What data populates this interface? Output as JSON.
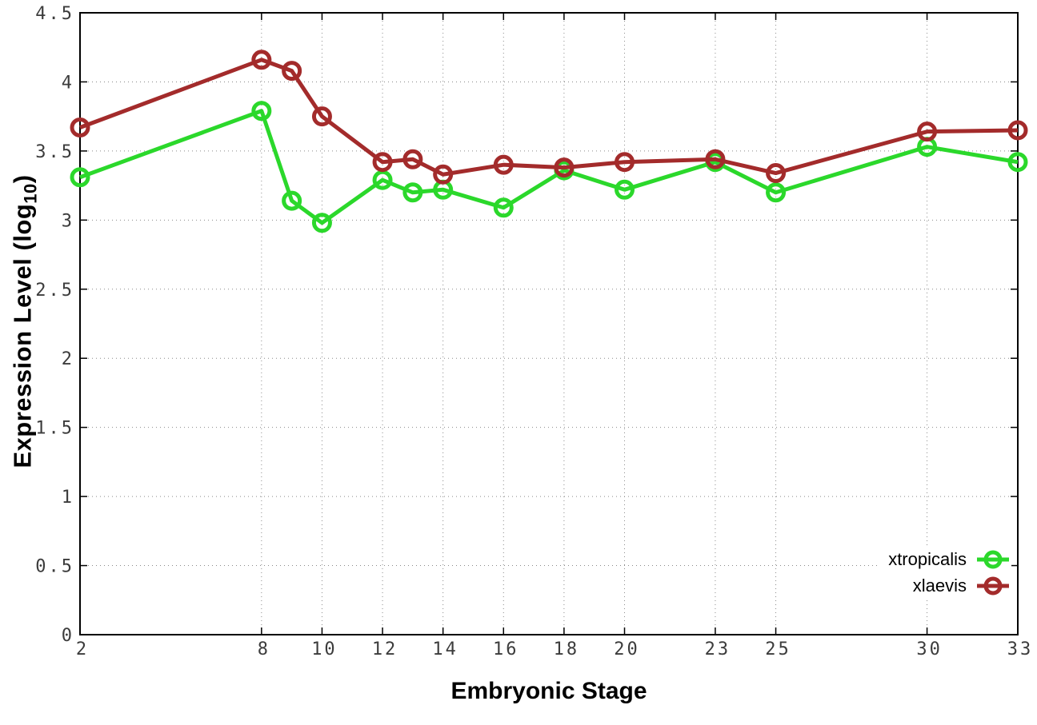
{
  "figure": {
    "ylabel_prefix": "Expression Level (log",
    "ylabel_sub": "10",
    "ylabel_suffix": ")"
  },
  "chart_data": {
    "type": "line",
    "title": "",
    "xlabel": "Embryonic Stage",
    "ylabel": "Expression Level (log10)",
    "x": [
      2,
      8,
      9,
      10,
      12,
      13,
      14,
      16,
      18,
      20,
      23,
      25,
      30,
      33
    ],
    "x_tick_labels": [
      2,
      8,
      10,
      12,
      14,
      16,
      18,
      20,
      23,
      25,
      30,
      33
    ],
    "y_ticks": [
      0,
      0.5,
      1,
      1.5,
      2,
      2.5,
      3,
      3.5,
      4,
      4.5
    ],
    "xlim": [
      2,
      33
    ],
    "ylim": [
      0,
      4.5
    ],
    "grid": true,
    "legend_position": "bottom-right",
    "series": [
      {
        "name": "xtropicalis",
        "color": "#2bd82b",
        "values": [
          3.31,
          3.79,
          3.14,
          2.98,
          3.29,
          3.2,
          3.22,
          3.09,
          3.36,
          3.22,
          3.42,
          3.2,
          3.53,
          3.42
        ]
      },
      {
        "name": "xlaevis",
        "color": "#a32b2b",
        "values": [
          3.67,
          4.16,
          4.08,
          3.75,
          3.42,
          3.44,
          3.33,
          3.4,
          3.38,
          3.42,
          3.44,
          3.34,
          3.64,
          3.65
        ]
      }
    ],
    "style": {
      "border_color": "#000000",
      "grid_color": "#8a8a8a",
      "tick_label_color": "#3c3c3c",
      "line_width": 5,
      "marker_radius": 10,
      "marker_stroke": 5
    }
  }
}
